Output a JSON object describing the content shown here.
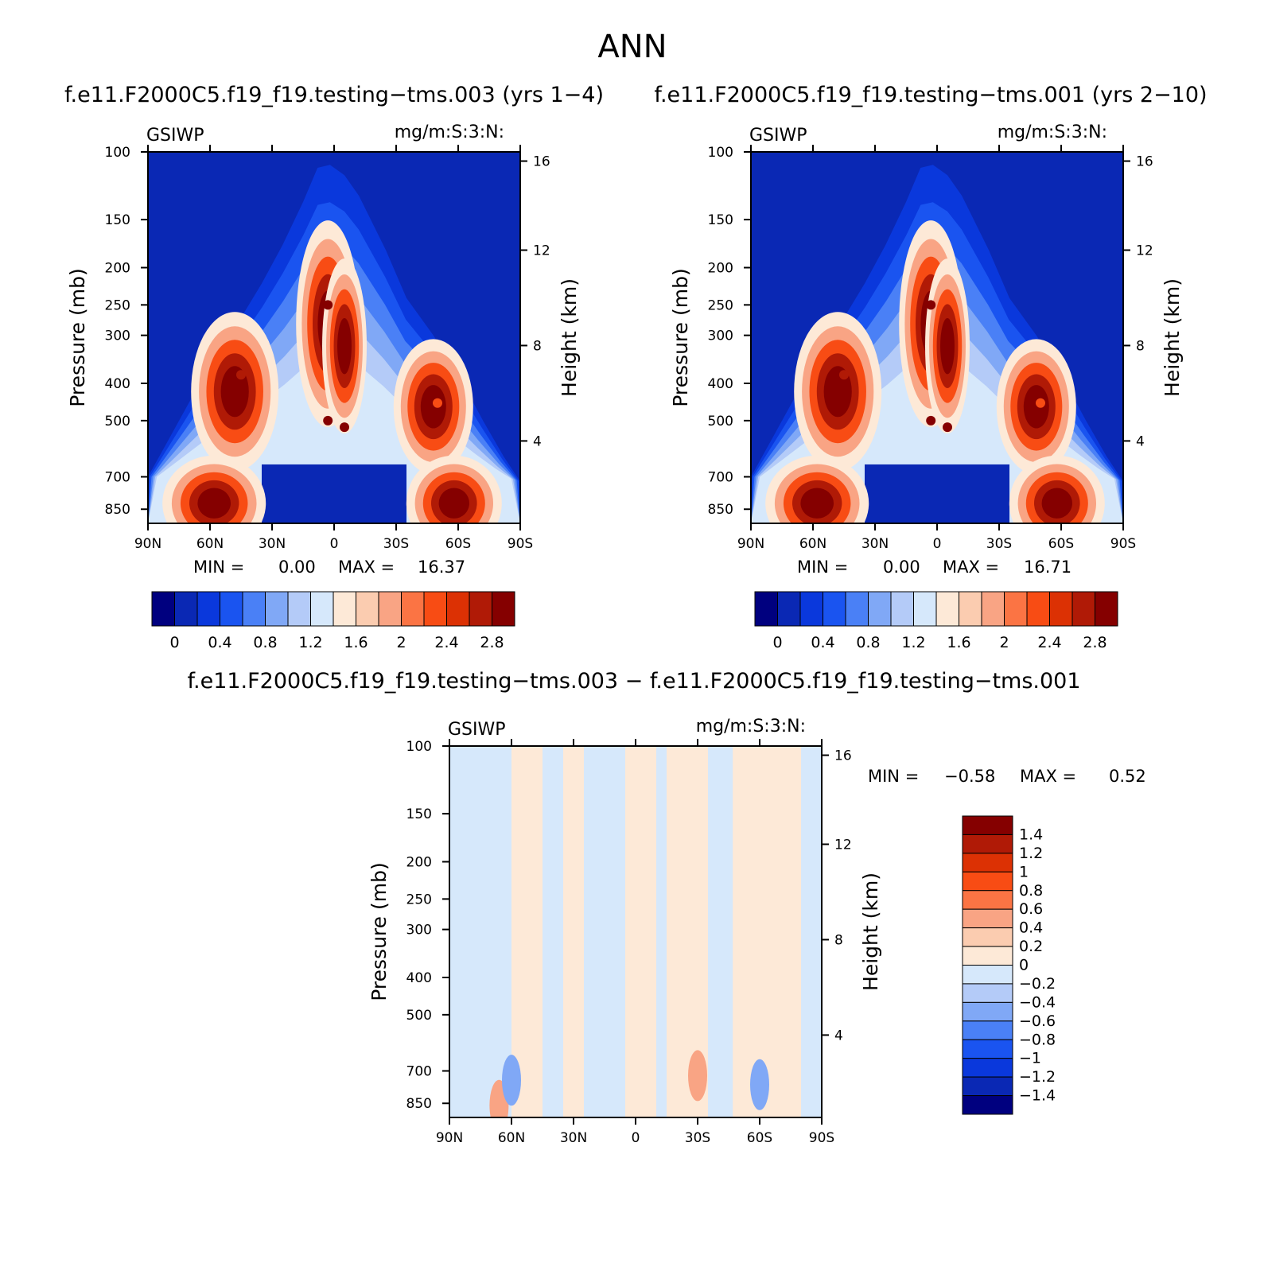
{
  "figure": {
    "title": "ANN",
    "case1_title": "f.e11.F2000C5.f19_f19.testing−tms.003 (yrs 1−4)",
    "case2_title": "f.e11.F2000C5.f19_f19.testing−tms.001 (yrs 2−10)",
    "diff_title": "f.e11.F2000C5.f19_f19.testing−tms.003 − f.e11.F2000C5.f19_f19.testing−tms.001"
  },
  "chart_data": [
    {
      "id": "case1",
      "type": "heatmap",
      "kind": "zonal-mean pressure-latitude contour",
      "variable_label": "GSIWP",
      "units_label": "mg/m:S:3:N:",
      "xlabel": "",
      "ylabel": "Pressure (mb)",
      "y2label": "Height (km)",
      "x_ticks": [
        "90N",
        "60N",
        "30N",
        "0",
        "30S",
        "60S",
        "90S"
      ],
      "x_range": [
        90,
        -90
      ],
      "y_ticks": [
        100,
        150,
        200,
        250,
        300,
        400,
        500,
        700,
        850
      ],
      "y_range": [
        100,
        925
      ],
      "y_scale": "log",
      "y2_ticks": [
        16,
        12,
        8,
        4
      ],
      "min_label": "MIN =",
      "min": "0.00",
      "max_label": "MAX =",
      "max": "16.37",
      "colorbar": {
        "orientation": "horizontal",
        "levels": [
          "0",
          "0.4",
          "0.8",
          "1.2",
          "1.6",
          "2",
          "2.4",
          "2.8"
        ],
        "colors": [
          "#00007f",
          "#0a28b4",
          "#0a38dc",
          "#1a54f0",
          "#4a80f6",
          "#80a8f6",
          "#b4cbf8",
          "#d6e8fb",
          "#fde9d7",
          "#fbccb0",
          "#f9a484",
          "#fb7444",
          "#f84c14",
          "#dc3104",
          "#b01a06",
          "#850000"
        ]
      },
      "features": [
        {
          "lat": 3,
          "p": 250,
          "value": 3.8
        },
        {
          "lat": -5,
          "p": 300,
          "value": 3.0
        },
        {
          "lat": 3,
          "p": 500,
          "value": 3.0
        },
        {
          "lat": -5,
          "p": 520,
          "value": 2.8
        },
        {
          "lat": 55,
          "p": 800,
          "value": 3.5
        },
        {
          "lat": 45,
          "p": 380,
          "value": 2.6
        },
        {
          "lat": -55,
          "p": 780,
          "value": 3.5
        },
        {
          "lat": -50,
          "p": 450,
          "value": 2.2
        }
      ]
    },
    {
      "id": "case2",
      "type": "heatmap",
      "kind": "zonal-mean pressure-latitude contour",
      "variable_label": "GSIWP",
      "units_label": "mg/m:S:3:N:",
      "xlabel": "",
      "ylabel": "Pressure (mb)",
      "y2label": "Height (km)",
      "x_ticks": [
        "90N",
        "60N",
        "30N",
        "0",
        "30S",
        "60S",
        "90S"
      ],
      "x_range": [
        90,
        -90
      ],
      "y_ticks": [
        100,
        150,
        200,
        250,
        300,
        400,
        500,
        700,
        850
      ],
      "y_range": [
        100,
        925
      ],
      "y_scale": "log",
      "y2_ticks": [
        16,
        12,
        8,
        4
      ],
      "min_label": "MIN =",
      "min": "0.00",
      "max_label": "MAX =",
      "max": "16.71",
      "colorbar": {
        "orientation": "horizontal",
        "levels": [
          "0",
          "0.4",
          "0.8",
          "1.2",
          "1.6",
          "2",
          "2.4",
          "2.8"
        ],
        "colors": [
          "#00007f",
          "#0a28b4",
          "#0a38dc",
          "#1a54f0",
          "#4a80f6",
          "#80a8f6",
          "#b4cbf8",
          "#d6e8fb",
          "#fde9d7",
          "#fbccb0",
          "#f9a484",
          "#fb7444",
          "#f84c14",
          "#dc3104",
          "#b01a06",
          "#850000"
        ]
      },
      "features": [
        {
          "lat": 3,
          "p": 250,
          "value": 3.8
        },
        {
          "lat": -5,
          "p": 300,
          "value": 3.0
        },
        {
          "lat": 3,
          "p": 500,
          "value": 3.0
        },
        {
          "lat": -5,
          "p": 520,
          "value": 2.8
        },
        {
          "lat": 55,
          "p": 800,
          "value": 3.5
        },
        {
          "lat": 45,
          "p": 380,
          "value": 2.6
        },
        {
          "lat": -55,
          "p": 780,
          "value": 3.5
        },
        {
          "lat": -50,
          "p": 450,
          "value": 2.2
        }
      ]
    },
    {
      "id": "diff",
      "type": "heatmap",
      "kind": "zonal-mean pressure-latitude difference contour",
      "variable_label": "GSIWP",
      "units_label": "mg/m:S:3:N:",
      "xlabel": "",
      "ylabel": "Pressure (mb)",
      "y2label": "Height (km)",
      "x_ticks": [
        "90N",
        "60N",
        "30N",
        "0",
        "30S",
        "60S",
        "90S"
      ],
      "x_range": [
        90,
        -90
      ],
      "y_ticks": [
        100,
        150,
        200,
        250,
        300,
        400,
        500,
        700,
        850
      ],
      "y_range": [
        100,
        925
      ],
      "y_scale": "log",
      "y2_ticks": [
        16,
        12,
        8,
        4
      ],
      "min_label": "MIN =",
      "min": "−0.58",
      "max_label": "MAX =",
      "max": "0.52",
      "colorbar": {
        "orientation": "vertical",
        "levels": [
          "1.4",
          "1.2",
          "1",
          "0.8",
          "0.6",
          "0.4",
          "0.2",
          "0",
          "−0.2",
          "−0.4",
          "−0.6",
          "−0.8",
          "−1",
          "−1.2",
          "−1.4"
        ],
        "colors": [
          "#850000",
          "#b01a06",
          "#dc3104",
          "#f84c14",
          "#fb7444",
          "#f9a484",
          "#fbccb0",
          "#fde9d7",
          "#d6e8fb",
          "#b4cbf8",
          "#80a8f6",
          "#4a80f6",
          "#1a54f0",
          "#0a38dc",
          "#0a28b4",
          "#00007f"
        ]
      },
      "features": [
        {
          "lat": 66,
          "p": 860,
          "value": 0.35
        },
        {
          "lat": 60,
          "p": 740,
          "value": -0.45
        },
        {
          "lat": -60,
          "p": 760,
          "value": -0.58
        },
        {
          "lat": -30,
          "p": 720,
          "value": 0.4
        }
      ]
    }
  ]
}
